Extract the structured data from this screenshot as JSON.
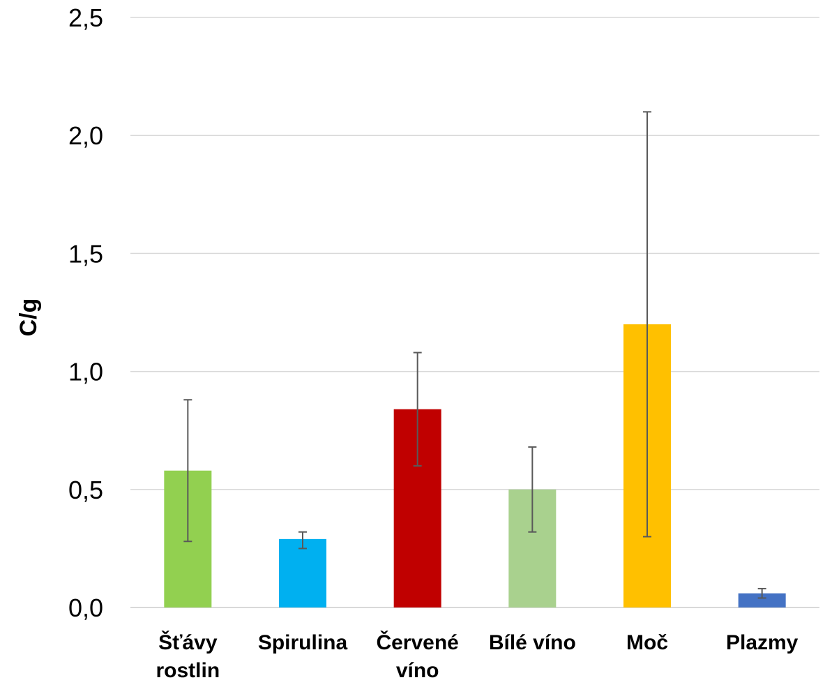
{
  "chart_data": {
    "type": "bar",
    "ylabel": "C/g",
    "xlabel": "",
    "title": "",
    "ylim": [
      0,
      2.5
    ],
    "yticks": [
      "0,0",
      "0,5",
      "1,0",
      "1,5",
      "2,0",
      "2,5"
    ],
    "grid": true,
    "categories": [
      {
        "lines": [
          "Šťávy",
          "rostlin"
        ]
      },
      {
        "lines": [
          "Spirulina"
        ]
      },
      {
        "lines": [
          "Červené",
          "víno"
        ]
      },
      {
        "lines": [
          "Bílé víno"
        ]
      },
      {
        "lines": [
          "Moč"
        ]
      },
      {
        "lines": [
          "Plazmy"
        ]
      }
    ],
    "values": [
      0.58,
      0.29,
      0.84,
      0.5,
      1.2,
      0.06
    ],
    "error_low": [
      0.28,
      0.25,
      0.6,
      0.32,
      0.3,
      0.04
    ],
    "error_high": [
      0.88,
      0.32,
      1.08,
      0.68,
      2.1,
      0.08
    ],
    "colors": [
      "#92D050",
      "#00B0F0",
      "#C00000",
      "#A9D18E",
      "#FFC000",
      "#4472C4"
    ],
    "grid_color": "#d9d9d9",
    "error_color": "#595959"
  }
}
